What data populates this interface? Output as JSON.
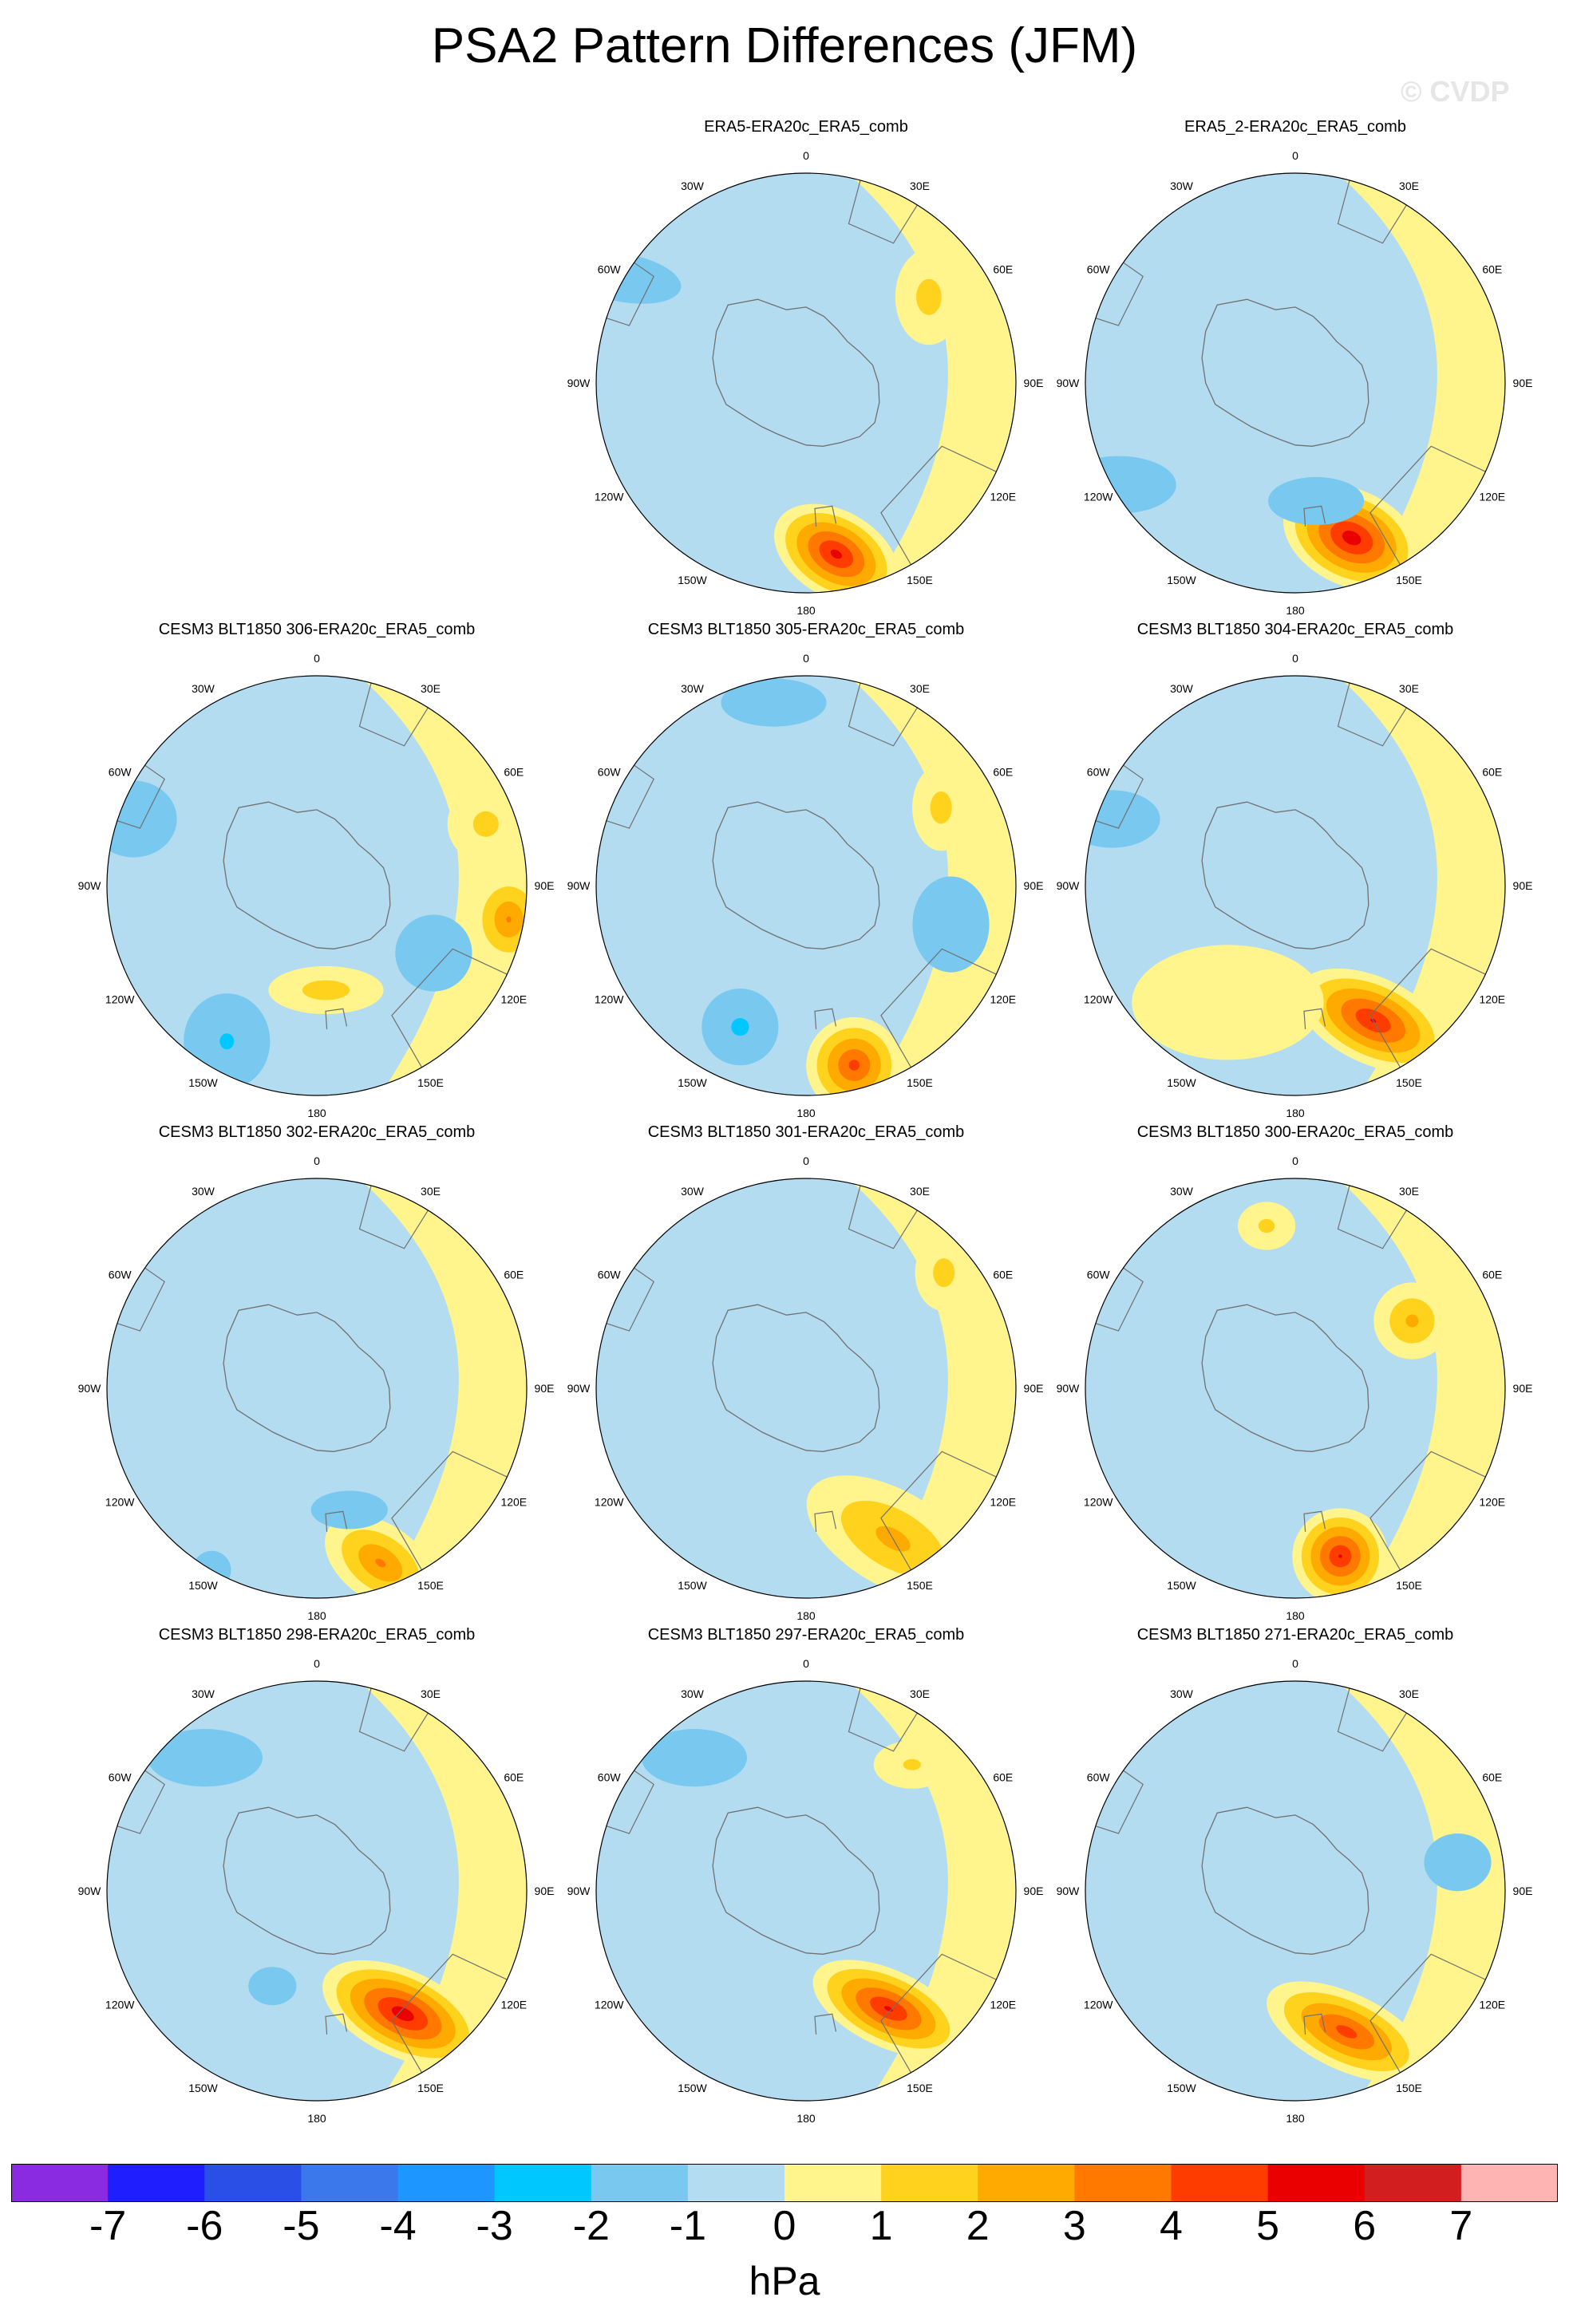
{
  "title": "PSA2 Pattern Differences (JFM)",
  "watermark": "© CVDP",
  "colors": {
    "levels": [
      "#8a2be2",
      "#1e1eff",
      "#2a4fe6",
      "#3a78ec",
      "#1e96ff",
      "#00c8ff",
      "#78c8f0",
      "#b4dcf0",
      "#fff58c",
      "#ffd21e",
      "#ffaa00",
      "#ff7800",
      "#ff3c00",
      "#eb0000",
      "#d21e1e",
      "#ffb4b4"
    ],
    "land_outline": "#707070",
    "background": "#ffffff"
  },
  "longitude_labels": [
    "0",
    "30E",
    "60E",
    "90E",
    "120E",
    "150E",
    "180",
    "150W",
    "120W",
    "90W",
    "60W",
    "30W"
  ],
  "colorbar": {
    "ticks": [
      "-7",
      "-6",
      "-5",
      "-4",
      "-3",
      "-2",
      "-1",
      "0",
      "1",
      "2",
      "3",
      "4",
      "5",
      "6",
      "7"
    ],
    "units": "hPa"
  },
  "panels": [
    {
      "title": "ERA5-ERA20c_ERA5_comb",
      "row": 0,
      "col": 1,
      "empty": false
    },
    {
      "title": "ERA5_2-ERA20c_ERA5_comb",
      "row": 0,
      "col": 2,
      "empty": false
    },
    {
      "title": "CESM3 BLT1850 306-ERA20c_ERA5_comb",
      "row": 1,
      "col": 0
    },
    {
      "title": "CESM3 BLT1850 305-ERA20c_ERA5_comb",
      "row": 1,
      "col": 1
    },
    {
      "title": "CESM3 BLT1850 304-ERA20c_ERA5_comb",
      "row": 1,
      "col": 2
    },
    {
      "title": "CESM3 BLT1850 302-ERA20c_ERA5_comb",
      "row": 2,
      "col": 0
    },
    {
      "title": "CESM3 BLT1850 301-ERA20c_ERA5_comb",
      "row": 2,
      "col": 1
    },
    {
      "title": "CESM3 BLT1850 300-ERA20c_ERA5_comb",
      "row": 2,
      "col": 2
    },
    {
      "title": "CESM3 BLT1850 298-ERA20c_ERA5_comb",
      "row": 3,
      "col": 0
    },
    {
      "title": "CESM3 BLT1850 297-ERA20c_ERA5_comb",
      "row": 3,
      "col": 1
    },
    {
      "title": "CESM3 BLT1850 271-ERA20c_ERA5_comb",
      "row": 3,
      "col": 2
    }
  ],
  "anomalies": [
    [
      {
        "lon": 170,
        "lat": 58,
        "peak": 5.5,
        "sx": 14,
        "sy": 9,
        "rot": 30
      },
      {
        "lon": -60,
        "lat": 70,
        "peak": -1.6,
        "sx": 12,
        "sy": 5,
        "rot": 10
      },
      {
        "lon": 55,
        "lat": 50,
        "peak": 1.6,
        "sx": 7,
        "sy": 10,
        "rot": 0
      }
    ],
    [
      {
        "lon": 160,
        "lat": 55,
        "peak": 5.8,
        "sx": 15,
        "sy": 10,
        "rot": 25
      },
      {
        "lon": 170,
        "lat": 40,
        "peak": -1.4,
        "sx": 10,
        "sy": 5,
        "rot": 0
      },
      {
        "lon": -120,
        "lat": 68,
        "peak": -1.3,
        "sx": 12,
        "sy": 6,
        "rot": 0
      }
    ],
    [
      {
        "lon": 100,
        "lat": 65,
        "peak": 3.2,
        "sx": 8,
        "sy": 10,
        "rot": 0
      },
      {
        "lon": 70,
        "lat": 60,
        "peak": 1.5,
        "sx": 8,
        "sy": 8,
        "rot": 0
      },
      {
        "lon": -150,
        "lat": 60,
        "peak": -2.4,
        "sx": 9,
        "sy": 10,
        "rot": 0
      },
      {
        "lon": -70,
        "lat": 65,
        "peak": -1.5,
        "sx": 9,
        "sy": 8,
        "rot": 0
      },
      {
        "lon": 120,
        "lat": 45,
        "peak": -1.5,
        "sx": 8,
        "sy": 8,
        "rot": 0
      },
      {
        "lon": 175,
        "lat": 35,
        "peak": 1.7,
        "sx": 12,
        "sy": 5,
        "rot": 0
      }
    ],
    [
      {
        "lon": 165,
        "lat": 62,
        "peak": 4.5,
        "sx": 10,
        "sy": 10,
        "rot": 0
      },
      {
        "lon": -155,
        "lat": 52,
        "peak": -2.6,
        "sx": 8,
        "sy": 8,
        "rot": 0
      },
      {
        "lon": 105,
        "lat": 50,
        "peak": -1.6,
        "sx": 8,
        "sy": 10,
        "rot": 0
      },
      {
        "lon": 60,
        "lat": 52,
        "peak": 1.6,
        "sx": 6,
        "sy": 9,
        "rot": 0
      },
      {
        "lon": -10,
        "lat": 62,
        "peak": -1.4,
        "sx": 11,
        "sy": 5,
        "rot": 0
      }
    ],
    [
      {
        "lon": 150,
        "lat": 52,
        "peak": 5.2,
        "sx": 17,
        "sy": 9,
        "rot": 25
      },
      {
        "lon": -150,
        "lat": 45,
        "peak": 0.7,
        "sx": 20,
        "sy": 12,
        "rot": 0
      },
      {
        "lon": -70,
        "lat": 65,
        "peak": -0.5,
        "sx": 10,
        "sy": 6,
        "rot": 0
      }
    ],
    [
      {
        "lon": 160,
        "lat": 62,
        "peak": 3.3,
        "sx": 13,
        "sy": 8,
        "rot": 35
      },
      {
        "lon": 165,
        "lat": 42,
        "peak": -1.3,
        "sx": 8,
        "sy": 4,
        "rot": 0
      },
      {
        "lon": -150,
        "lat": 70,
        "peak": -1.3,
        "sx": 4,
        "sy": 4,
        "rot": 0
      }
    ],
    [
      {
        "lon": 150,
        "lat": 58,
        "peak": 2.5,
        "sx": 20,
        "sy": 10,
        "rot": 30
      },
      {
        "lon": 50,
        "lat": 60,
        "peak": 1.6,
        "sx": 6,
        "sy": 8,
        "rot": 0
      }
    ],
    [
      {
        "lon": 165,
        "lat": 58,
        "peak": 5.2,
        "sx": 10,
        "sy": 10,
        "rot": 0
      },
      {
        "lon": 60,
        "lat": 45,
        "peak": 2.4,
        "sx": 8,
        "sy": 8,
        "rot": 0
      },
      {
        "lon": -10,
        "lat": 55,
        "peak": 1.4,
        "sx": 6,
        "sy": 5,
        "rot": 0
      }
    ],
    [
      {
        "lon": 145,
        "lat": 50,
        "peak": 5.8,
        "sx": 18,
        "sy": 9,
        "rot": 25
      },
      {
        "lon": -40,
        "lat": 58,
        "peak": -1.6,
        "sx": 12,
        "sy": 6,
        "rot": 0
      },
      {
        "lon": -155,
        "lat": 35,
        "peak": -1.3,
        "sx": 5,
        "sy": 4,
        "rot": 0
      }
    ],
    [
      {
        "lon": 145,
        "lat": 48,
        "peak": 5.3,
        "sx": 17,
        "sy": 8,
        "rot": 25
      },
      {
        "lon": -40,
        "lat": 58,
        "peak": -1.6,
        "sx": 11,
        "sy": 6,
        "rot": 0
      },
      {
        "lon": 40,
        "lat": 55,
        "peak": 1.3,
        "sx": 8,
        "sy": 5,
        "rot": 0
      }
    ],
    [
      {
        "lon": 160,
        "lat": 50,
        "peak": 4.6,
        "sx": 18,
        "sy": 8,
        "rot": 25
      },
      {
        "lon": 80,
        "lat": 55,
        "peak": -1.6,
        "sx": 7,
        "sy": 6,
        "rot": 0
      }
    ]
  ]
}
